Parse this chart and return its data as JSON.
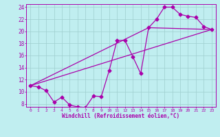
{
  "xlabel": "Windchill (Refroidissement éolien,°C)",
  "bg_color": "#c0eef0",
  "line_color": "#aa00aa",
  "xlim": [
    -0.5,
    23.5
  ],
  "ylim": [
    7.5,
    24.5
  ],
  "xticks": [
    0,
    1,
    2,
    3,
    4,
    5,
    6,
    7,
    8,
    9,
    10,
    11,
    12,
    13,
    14,
    15,
    16,
    17,
    18,
    19,
    20,
    21,
    22,
    23
  ],
  "yticks": [
    8,
    10,
    12,
    14,
    16,
    18,
    20,
    22,
    24
  ],
  "grid_color": "#9ecece",
  "curve1_x": [
    0,
    1,
    2,
    3,
    4,
    5,
    6,
    7,
    8,
    9,
    10,
    11,
    12,
    13,
    14,
    15,
    16,
    17,
    18,
    19,
    20,
    21,
    22,
    23
  ],
  "curve1_y": [
    11.0,
    10.8,
    10.2,
    8.3,
    9.1,
    7.8,
    7.5,
    7.4,
    9.3,
    9.2,
    13.5,
    18.5,
    18.5,
    15.8,
    13.0,
    20.6,
    22.0,
    24.0,
    24.0,
    22.8,
    22.5,
    22.3,
    20.8,
    20.3
  ],
  "line1_x": [
    0,
    23
  ],
  "line1_y": [
    11.0,
    20.3
  ],
  "line2_x": [
    0,
    15,
    23
  ],
  "line2_y": [
    11.0,
    20.6,
    20.3
  ],
  "lw": 0.9,
  "ms": 2.5
}
